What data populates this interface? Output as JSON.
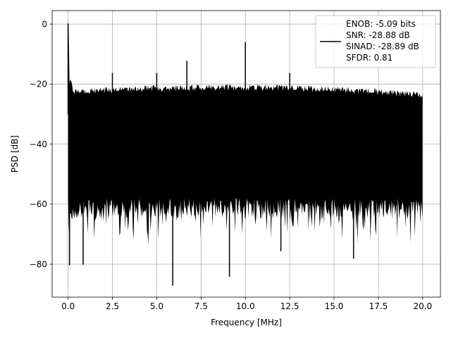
{
  "chart_data": {
    "type": "line",
    "title": "",
    "xlabel": "Frequency [MHz]",
    "ylabel": "PSD [dB]",
    "xlim": [
      -0.9,
      21.0
    ],
    "ylim": [
      -91.0,
      4.5
    ],
    "xticks": [
      0.0,
      2.5,
      5.0,
      7.5,
      10.0,
      12.5,
      15.0,
      17.5,
      20.0
    ],
    "xtick_labels": [
      "0.0",
      "2.5",
      "5.0",
      "7.5",
      "10.0",
      "12.5",
      "15.0",
      "17.5",
      "20.0"
    ],
    "yticks": [
      0,
      -20,
      -40,
      -60,
      -80
    ],
    "ytick_labels": [
      "0",
      "−20",
      "−40",
      "−60",
      "−80"
    ],
    "grid": true,
    "legend_position": "upper-right",
    "series": [
      {
        "name": "ENOB: -5.09 bits\nSNR: -28.88 dB\nSINAD: -28.89 dB\nSFDR: 0.81",
        "color": "#000000",
        "description": "noise floor spectrum",
        "x_range": [
          0.0,
          20.0
        ],
        "upper_envelope_db": -20.5,
        "median_db": -36,
        "min_db": -87,
        "spurs": [
          {
            "x": 0.0,
            "y": 0.0
          },
          {
            "x": 2.5,
            "y": -16.5
          },
          {
            "x": 5.0,
            "y": -16.5
          },
          {
            "x": 6.7,
            "y": -12.5
          },
          {
            "x": 10.0,
            "y": -6.2
          },
          {
            "x": 12.5,
            "y": -16.5
          }
        ],
        "deep_nulls": [
          {
            "x": 0.08,
            "y": -80.2
          },
          {
            "x": 0.85,
            "y": -80.0
          },
          {
            "x": 5.9,
            "y": -87.0
          },
          {
            "x": 9.1,
            "y": -84.0
          },
          {
            "x": 12.0,
            "y": -75.5
          },
          {
            "x": 16.1,
            "y": -78.0
          }
        ]
      }
    ],
    "legend_lines": [
      "ENOB: -5.09 bits",
      "SNR: -28.88 dB",
      "SINAD: -28.89 dB",
      "SFDR: 0.81"
    ]
  }
}
